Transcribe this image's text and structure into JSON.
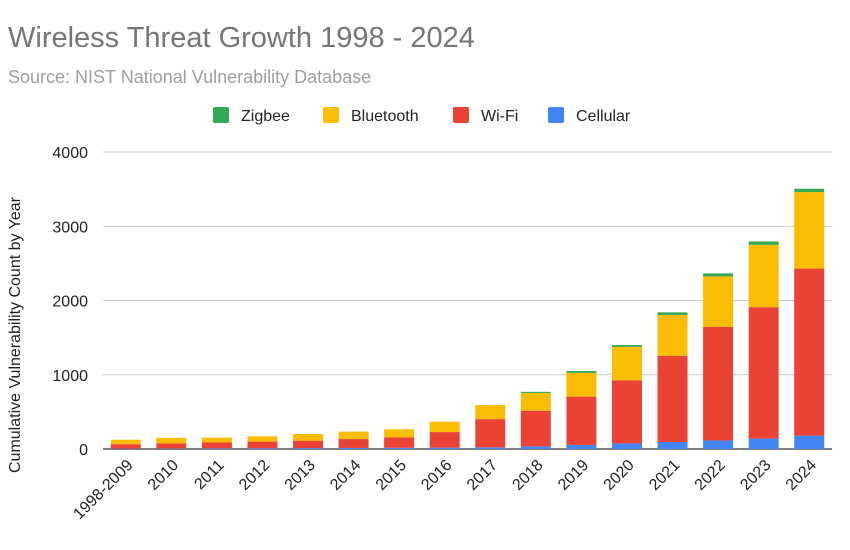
{
  "chart_data": {
    "type": "bar",
    "stacked": true,
    "title": "Wireless Threat Growth 1998 - 2024",
    "subtitle": "Source: NIST National Vulnerability Database",
    "xlabel": "",
    "ylabel": "Cumulative Vulnerability Count by Year",
    "ylim": [
      0,
      4000
    ],
    "yticks": [
      "0",
      "1000",
      "2000",
      "3000",
      "4000"
    ],
    "grid": true,
    "legend_position": "top",
    "categories": [
      "1998-2009",
      "2010",
      "2011",
      "2012",
      "2013",
      "2014",
      "2015",
      "2016",
      "2017",
      "2018",
      "2019",
      "2020",
      "2021",
      "2022",
      "2023",
      "2024"
    ],
    "series": [
      {
        "name": "Cellular",
        "color": "#4285f4",
        "values": [
          5,
          6,
          8,
          10,
          12,
          14,
          16,
          18,
          22,
          35,
          55,
          75,
          95,
          115,
          140,
          180
        ]
      },
      {
        "name": "Wi-Fi",
        "color": "#ea4335",
        "values": [
          60,
          70,
          80,
          90,
          100,
          120,
          140,
          210,
          380,
          480,
          650,
          850,
          1160,
          1530,
          1770,
          2250
        ]
      },
      {
        "name": "Bluetooth",
        "color": "#fbbc04",
        "values": [
          60,
          75,
          65,
          70,
          90,
          100,
          110,
          140,
          190,
          240,
          320,
          450,
          550,
          680,
          840,
          1030
        ]
      },
      {
        "name": "Zigbee",
        "color": "#34a853",
        "values": [
          0,
          0,
          0,
          0,
          0,
          0,
          0,
          0,
          0,
          15,
          25,
          25,
          35,
          40,
          45,
          45
        ]
      }
    ],
    "legend_order": [
      "Zigbee",
      "Bluetooth",
      "Wi-Fi",
      "Cellular"
    ]
  }
}
